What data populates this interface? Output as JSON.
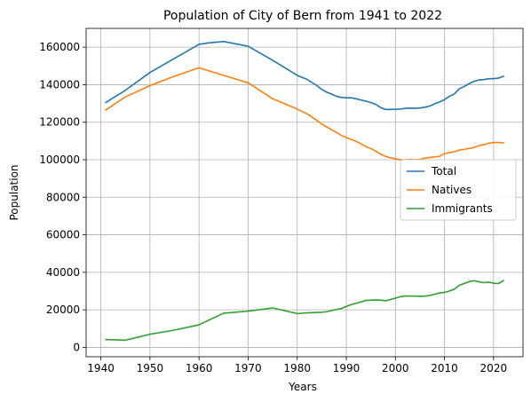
{
  "chart_data": {
    "type": "line",
    "title": "Population of City of Bern from 1941 to 2022",
    "xlabel": "Years",
    "ylabel": "Population",
    "xlim": [
      1937,
      2026
    ],
    "ylim": [
      -5000,
      170000
    ],
    "xticks": [
      1940,
      1950,
      1960,
      1970,
      1980,
      1990,
      2000,
      2010,
      2020
    ],
    "yticks": [
      0,
      20000,
      40000,
      60000,
      80000,
      100000,
      120000,
      140000,
      160000
    ],
    "grid": true,
    "legend_position": "center-right",
    "series": [
      {
        "name": "Total",
        "color": "#1f77b4",
        "points": [
          [
            1941,
            130500
          ],
          [
            1945,
            137000
          ],
          [
            1950,
            146500
          ],
          [
            1955,
            154000
          ],
          [
            1960,
            161500
          ],
          [
            1962,
            162300
          ],
          [
            1965,
            163000
          ],
          [
            1970,
            160500
          ],
          [
            1975,
            153000
          ],
          [
            1980,
            145000
          ],
          [
            1982,
            142800
          ],
          [
            1984,
            139500
          ],
          [
            1985,
            137500
          ],
          [
            1986,
            136000
          ],
          [
            1987,
            135000
          ],
          [
            1988,
            133800
          ],
          [
            1989,
            133200
          ],
          [
            1990,
            133000
          ],
          [
            1991,
            133000
          ],
          [
            1992,
            132500
          ],
          [
            1993,
            131800
          ],
          [
            1994,
            131200
          ],
          [
            1995,
            130500
          ],
          [
            1996,
            129500
          ],
          [
            1997,
            127800
          ],
          [
            1998,
            126800
          ],
          [
            1999,
            126800
          ],
          [
            2000,
            126900
          ],
          [
            2001,
            127000
          ],
          [
            2002,
            127400
          ],
          [
            2003,
            127500
          ],
          [
            2004,
            127400
          ],
          [
            2005,
            127600
          ],
          [
            2006,
            128000
          ],
          [
            2007,
            128600
          ],
          [
            2008,
            129800
          ],
          [
            2009,
            130800
          ],
          [
            2010,
            132000
          ],
          [
            2011,
            133800
          ],
          [
            2012,
            135000
          ],
          [
            2013,
            137800
          ],
          [
            2014,
            139000
          ],
          [
            2015,
            140500
          ],
          [
            2016,
            141800
          ],
          [
            2017,
            142500
          ],
          [
            2018,
            142700
          ],
          [
            2019,
            143200
          ],
          [
            2020,
            143200
          ],
          [
            2021,
            143500
          ],
          [
            2022,
            144500
          ]
        ]
      },
      {
        "name": "Natives",
        "color": "#ff7f0e",
        "points": [
          [
            1941,
            126500
          ],
          [
            1945,
            133500
          ],
          [
            1950,
            139500
          ],
          [
            1955,
            144500
          ],
          [
            1960,
            149000
          ],
          [
            1965,
            145000
          ],
          [
            1970,
            141000
          ],
          [
            1975,
            132500
          ],
          [
            1980,
            127000
          ],
          [
            1982,
            124500
          ],
          [
            1984,
            121000
          ],
          [
            1985,
            119000
          ],
          [
            1986,
            117500
          ],
          [
            1987,
            116000
          ],
          [
            1988,
            114500
          ],
          [
            1989,
            113000
          ],
          [
            1990,
            111800
          ],
          [
            1991,
            110800
          ],
          [
            1992,
            109800
          ],
          [
            1993,
            108500
          ],
          [
            1994,
            107000
          ],
          [
            1995,
            106000
          ],
          [
            1996,
            104500
          ],
          [
            1997,
            103000
          ],
          [
            1998,
            101800
          ],
          [
            1999,
            101000
          ],
          [
            2000,
            100500
          ],
          [
            2001,
            100000
          ],
          [
            2002,
            100000
          ],
          [
            2003,
            100200
          ],
          [
            2004,
            100000
          ],
          [
            2005,
            100200
          ],
          [
            2006,
            100800
          ],
          [
            2007,
            101200
          ],
          [
            2008,
            101500
          ],
          [
            2009,
            101800
          ],
          [
            2010,
            103200
          ],
          [
            2011,
            103800
          ],
          [
            2012,
            104200
          ],
          [
            2013,
            105200
          ],
          [
            2014,
            105500
          ],
          [
            2015,
            106000
          ],
          [
            2016,
            106500
          ],
          [
            2017,
            107500
          ],
          [
            2018,
            108000
          ],
          [
            2019,
            108800
          ],
          [
            2020,
            109200
          ],
          [
            2021,
            109200
          ],
          [
            2022,
            109000
          ]
        ]
      },
      {
        "name": "Immigrants",
        "color": "#2ca02c",
        "points": [
          [
            1941,
            4200
          ],
          [
            1945,
            3800
          ],
          [
            1950,
            7000
          ],
          [
            1955,
            9200
          ],
          [
            1960,
            12000
          ],
          [
            1965,
            18200
          ],
          [
            1970,
            19300
          ],
          [
            1975,
            21000
          ],
          [
            1980,
            18000
          ],
          [
            1982,
            18400
          ],
          [
            1984,
            18600
          ],
          [
            1985,
            18700
          ],
          [
            1986,
            19000
          ],
          [
            1987,
            19600
          ],
          [
            1988,
            20200
          ],
          [
            1989,
            20700
          ],
          [
            1990,
            21800
          ],
          [
            1991,
            22800
          ],
          [
            1992,
            23500
          ],
          [
            1993,
            24200
          ],
          [
            1994,
            25000
          ],
          [
            1995,
            25200
          ],
          [
            1996,
            25300
          ],
          [
            1997,
            25200
          ],
          [
            1998,
            24800
          ],
          [
            1999,
            25500
          ],
          [
            2000,
            26200
          ],
          [
            2001,
            27000
          ],
          [
            2002,
            27400
          ],
          [
            2003,
            27300
          ],
          [
            2004,
            27300
          ],
          [
            2005,
            27200
          ],
          [
            2006,
            27300
          ],
          [
            2007,
            27700
          ],
          [
            2008,
            28300
          ],
          [
            2009,
            29000
          ],
          [
            2010,
            29300
          ],
          [
            2011,
            30000
          ],
          [
            2012,
            31000
          ],
          [
            2013,
            33000
          ],
          [
            2014,
            34000
          ],
          [
            2015,
            35000
          ],
          [
            2016,
            35500
          ],
          [
            2017,
            35000
          ],
          [
            2018,
            34500
          ],
          [
            2019,
            34800
          ],
          [
            2020,
            34200
          ],
          [
            2021,
            34000
          ],
          [
            2022,
            35600
          ]
        ]
      }
    ]
  }
}
